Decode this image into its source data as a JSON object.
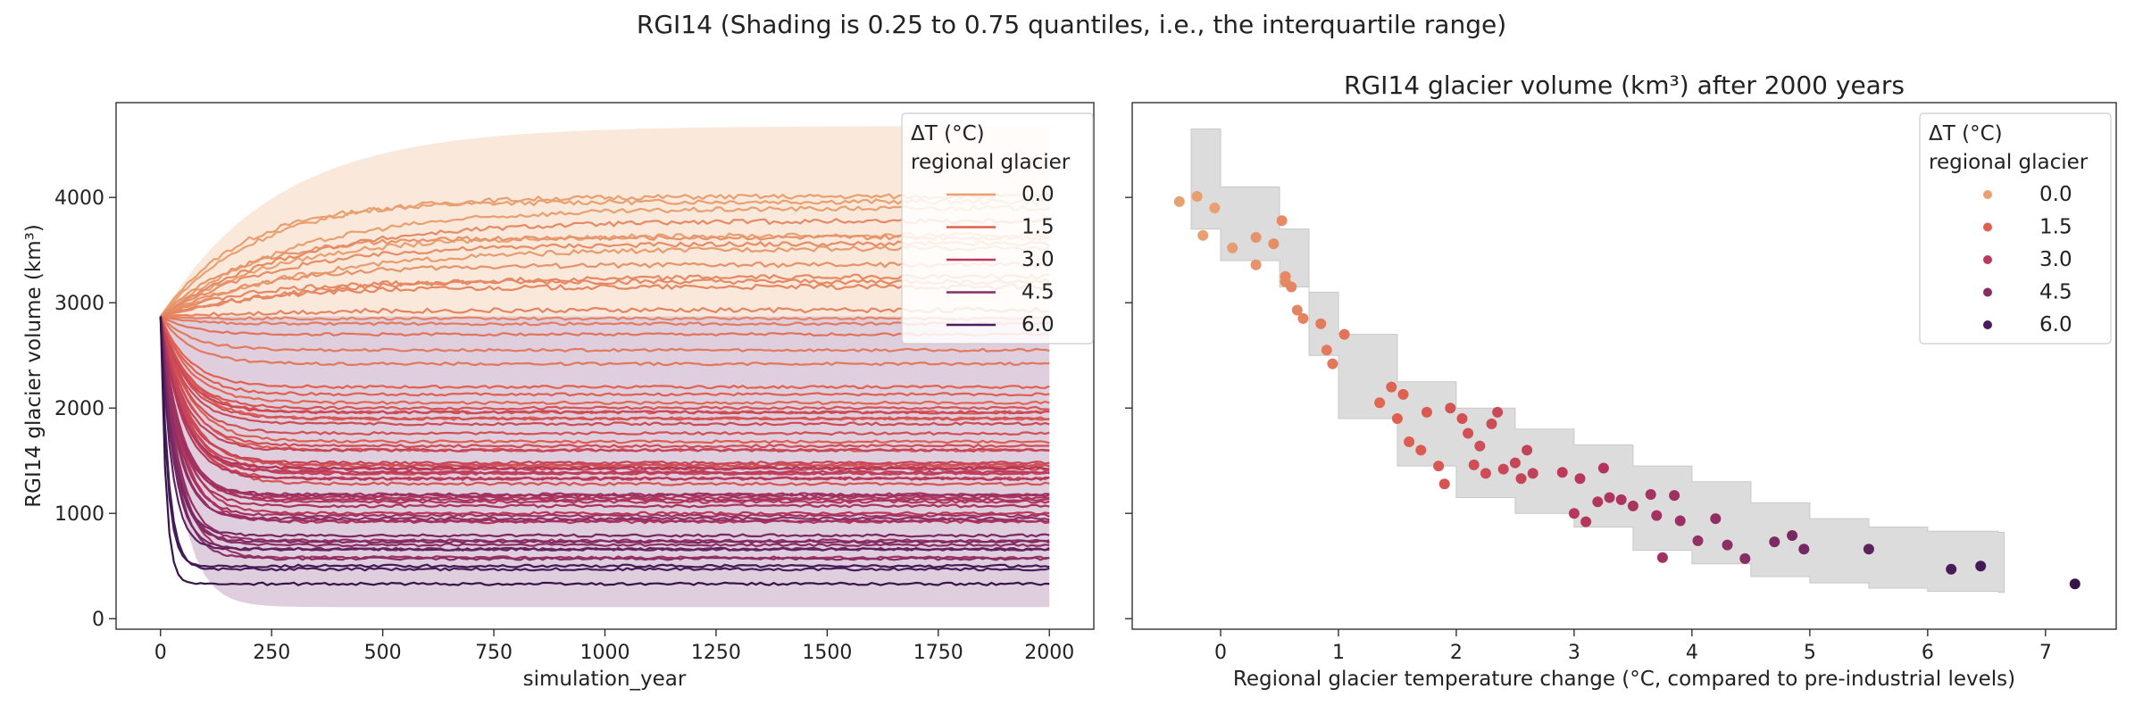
{
  "figure": {
    "suptitle": "RGI14 (Shading is 0.25 to 0.75 quantiles, i.e., the interquartile range)"
  },
  "legend": {
    "title_line1": "ΔT (°C)",
    "title_line2": "regional glacier",
    "entries": [
      "0.0",
      "1.5",
      "3.0",
      "4.5",
      "6.0"
    ],
    "placement": "top-right",
    "colors": [
      "#e8a070",
      "#e06050",
      "#b9385c",
      "#862d66",
      "#4a1d5c"
    ]
  },
  "colors": {
    "axis": "#222222",
    "band_warm": "#f7d9c2",
    "band_cool": "#c9aec6",
    "band_scatter": "#dcdcdc"
  },
  "chart_data": [
    {
      "type": "line",
      "title": "",
      "xlabel": "simulation_year",
      "ylabel": "RGI14 glacier volume (km³)",
      "xlim": [
        -100,
        2100
      ],
      "ylim": [
        -100,
        4900
      ],
      "xticks": [
        0,
        250,
        500,
        750,
        1000,
        1250,
        1500,
        1750,
        2000
      ],
      "yticks": [
        0,
        1000,
        2000,
        3000,
        4000
      ],
      "grid": false,
      "initial_volume": 2870,
      "x_end": 2000,
      "series_note_equilibrium_volumes_and_dT": true,
      "series": [
        {
          "dT": -0.35,
          "end": 3960
        },
        {
          "dT": -0.2,
          "end": 4010
        },
        {
          "dT": -0.15,
          "end": 3640
        },
        {
          "dT": -0.05,
          "end": 3900
        },
        {
          "dT": 0.1,
          "end": 3520
        },
        {
          "dT": 0.3,
          "end": 3620
        },
        {
          "dT": 0.3,
          "end": 3360
        },
        {
          "dT": 0.45,
          "end": 3560
        },
        {
          "dT": 0.52,
          "end": 3780
        },
        {
          "dT": 0.55,
          "end": 3250
        },
        {
          "dT": 0.55,
          "end": 3200
        },
        {
          "dT": 0.6,
          "end": 3150
        },
        {
          "dT": 0.65,
          "end": 2930
        },
        {
          "dT": 0.7,
          "end": 2850
        },
        {
          "dT": 0.85,
          "end": 2800
        },
        {
          "dT": 0.9,
          "end": 2550
        },
        {
          "dT": 0.95,
          "end": 2420
        },
        {
          "dT": 1.05,
          "end": 2700
        },
        {
          "dT": 1.35,
          "end": 2050
        },
        {
          "dT": 1.45,
          "end": 2200
        },
        {
          "dT": 1.5,
          "end": 1900
        },
        {
          "dT": 1.55,
          "end": 2130
        },
        {
          "dT": 1.6,
          "end": 1680
        },
        {
          "dT": 1.7,
          "end": 1600
        },
        {
          "dT": 1.75,
          "end": 1960
        },
        {
          "dT": 1.85,
          "end": 1450
        },
        {
          "dT": 1.9,
          "end": 1280
        },
        {
          "dT": 1.95,
          "end": 2000
        },
        {
          "dT": 2.05,
          "end": 1900
        },
        {
          "dT": 2.1,
          "end": 1760
        },
        {
          "dT": 2.15,
          "end": 1460
        },
        {
          "dT": 2.2,
          "end": 1640
        },
        {
          "dT": 2.25,
          "end": 1380
        },
        {
          "dT": 2.3,
          "end": 1850
        },
        {
          "dT": 2.35,
          "end": 1960
        },
        {
          "dT": 2.4,
          "end": 1420
        },
        {
          "dT": 2.5,
          "end": 1480
        },
        {
          "dT": 2.55,
          "end": 1330
        },
        {
          "dT": 2.6,
          "end": 1600
        },
        {
          "dT": 2.65,
          "end": 1380
        },
        {
          "dT": 2.9,
          "end": 1390
        },
        {
          "dT": 3.0,
          "end": 1000
        },
        {
          "dT": 3.05,
          "end": 1330
        },
        {
          "dT": 3.1,
          "end": 920
        },
        {
          "dT": 3.2,
          "end": 1110
        },
        {
          "dT": 3.25,
          "end": 1430
        },
        {
          "dT": 3.3,
          "end": 1150
        },
        {
          "dT": 3.4,
          "end": 1130
        },
        {
          "dT": 3.5,
          "end": 1070
        },
        {
          "dT": 3.65,
          "end": 1180
        },
        {
          "dT": 3.7,
          "end": 980
        },
        {
          "dT": 3.75,
          "end": 580
        },
        {
          "dT": 3.85,
          "end": 1170
        },
        {
          "dT": 3.9,
          "end": 930
        },
        {
          "dT": 4.05,
          "end": 740
        },
        {
          "dT": 4.2,
          "end": 950
        },
        {
          "dT": 4.3,
          "end": 700
        },
        {
          "dT": 4.45,
          "end": 570
        },
        {
          "dT": 4.7,
          "end": 730
        },
        {
          "dT": 4.85,
          "end": 790
        },
        {
          "dT": 4.95,
          "end": 660
        },
        {
          "dT": 5.5,
          "end": 660
        },
        {
          "dT": 6.2,
          "end": 470
        },
        {
          "dT": 6.45,
          "end": 500
        },
        {
          "dT": 7.25,
          "end": 330
        }
      ],
      "band": {
        "quantiles": [
          0.25,
          0.75
        ],
        "upper_plateau": 4680,
        "lower_plateau": 110
      }
    },
    {
      "type": "scatter",
      "title": "RGI14 glacier volume (km³) after 2000 years",
      "xlabel": "Regional glacier temperature change (°C, compared to pre-industrial levels)",
      "ylabel": "",
      "xlim": [
        -0.75,
        7.6
      ],
      "ylim": [
        -100,
        4900
      ],
      "xticks": [
        0,
        1,
        2,
        3,
        4,
        5,
        6,
        7
      ],
      "yticks": [
        0,
        1000,
        2000,
        3000,
        4000
      ],
      "ytick_labels_shown": false,
      "grid": false,
      "points_from_series_of_first_chart": true,
      "band": {
        "quantiles": [
          0.25,
          0.75
        ],
        "x": [
          -0.25,
          0.0,
          0.5,
          0.75,
          1.0,
          1.5,
          2.0,
          2.5,
          3.0,
          3.5,
          4.0,
          4.5,
          5.0,
          5.5,
          6.0,
          6.6
        ],
        "upper": [
          4650,
          4100,
          3700,
          3100,
          2700,
          2250,
          2000,
          1800,
          1650,
          1450,
          1300,
          1100,
          950,
          870,
          830,
          820
        ],
        "lower": [
          3700,
          3400,
          3150,
          2500,
          1900,
          1450,
          1150,
          1000,
          870,
          650,
          520,
          400,
          340,
          290,
          260,
          250
        ]
      }
    }
  ]
}
